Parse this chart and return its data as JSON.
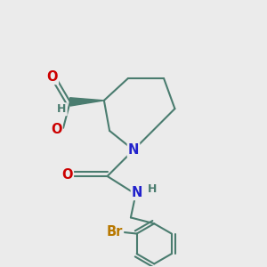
{
  "background_color": "#ebebeb",
  "bond_color": "#4a7c6f",
  "bond_width": 1.5,
  "atom_colors": {
    "N": "#2222cc",
    "O": "#cc0000",
    "Br": "#b87800",
    "H": "#4a7c6f",
    "C": "#4a7c6f"
  },
  "font_size_atoms": 10.5,
  "font_size_h": 9.0,
  "title": ""
}
